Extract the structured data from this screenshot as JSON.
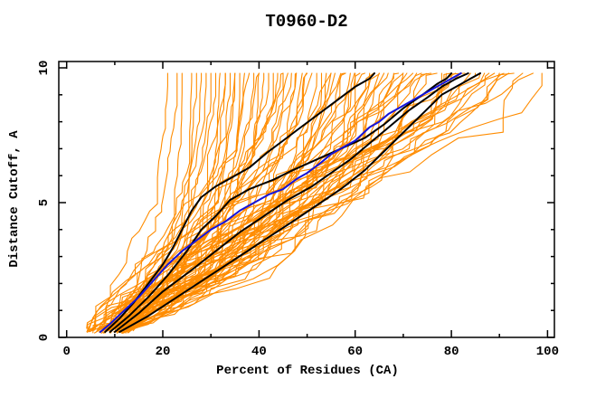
{
  "chart_data": {
    "type": "line",
    "title": "T0960-D2",
    "xlabel": "Percent of Residues (CA)",
    "ylabel": "Distance Cutoff, A",
    "xlim": [
      0,
      100
    ],
    "ylim": [
      0,
      10
    ],
    "grid": false,
    "legend": "none",
    "background_color": "#FFFFFF",
    "axis_color": "#000000",
    "x_major_ticks": [
      0,
      20,
      40,
      60,
      80,
      100
    ],
    "x_minor_ticks": [
      10,
      30,
      50,
      70,
      90
    ],
    "y_major_ticks": [
      0,
      5,
      10
    ],
    "y_minor_ticks": [
      1,
      2,
      3,
      4,
      6,
      7,
      8,
      9
    ],
    "series": [
      {
        "name": "highlight-model-black-1",
        "color": "#000000",
        "width": 2,
        "points": [
          [
            8,
            0.2
          ],
          [
            11,
            0.7
          ],
          [
            14,
            1.3
          ],
          [
            17,
            2.0
          ],
          [
            20,
            2.7
          ],
          [
            22,
            3.3
          ],
          [
            24,
            4.0
          ],
          [
            26,
            4.7
          ],
          [
            28,
            5.2
          ],
          [
            31,
            5.6
          ],
          [
            34,
            5.9
          ],
          [
            38,
            6.3
          ],
          [
            42,
            6.9
          ],
          [
            45,
            7.3
          ],
          [
            48,
            7.7
          ],
          [
            51,
            8.1
          ],
          [
            54,
            8.5
          ],
          [
            57,
            8.9
          ],
          [
            60,
            9.3
          ],
          [
            63,
            9.6
          ],
          [
            64,
            9.8
          ]
        ]
      },
      {
        "name": "highlight-model-black-2",
        "color": "#000000",
        "width": 2,
        "points": [
          [
            9,
            0.2
          ],
          [
            13,
            0.8
          ],
          [
            17,
            1.5
          ],
          [
            21,
            2.3
          ],
          [
            25,
            3.2
          ],
          [
            28,
            4.0
          ],
          [
            31,
            4.5
          ],
          [
            34,
            5.1
          ],
          [
            38,
            5.5
          ],
          [
            43,
            5.85
          ],
          [
            47,
            6.2
          ],
          [
            52,
            6.6
          ],
          [
            57,
            7.0
          ],
          [
            62,
            7.4
          ],
          [
            66,
            7.9
          ],
          [
            70,
            8.5
          ],
          [
            74,
            9.0
          ],
          [
            77,
            9.4
          ],
          [
            79,
            9.6
          ],
          [
            80,
            9.8
          ]
        ]
      },
      {
        "name": "highlight-model-black-3",
        "color": "#000000",
        "width": 2,
        "points": [
          [
            10,
            0.2
          ],
          [
            15,
            0.9
          ],
          [
            20,
            1.7
          ],
          [
            26,
            2.5
          ],
          [
            31,
            3.2
          ],
          [
            36,
            3.9
          ],
          [
            41,
            4.5
          ],
          [
            46,
            5.1
          ],
          [
            51,
            5.6
          ],
          [
            55,
            6.1
          ],
          [
            59,
            6.6
          ],
          [
            63,
            7.2
          ],
          [
            67,
            7.8
          ],
          [
            71,
            8.4
          ],
          [
            75,
            8.9
          ],
          [
            78,
            9.3
          ],
          [
            81,
            9.6
          ],
          [
            83.5,
            9.8
          ]
        ]
      },
      {
        "name": "highlight-model-black-4",
        "color": "#000000",
        "width": 2,
        "points": [
          [
            11,
            0.2
          ],
          [
            17,
            0.8
          ],
          [
            23,
            1.5
          ],
          [
            29,
            2.2
          ],
          [
            35,
            2.9
          ],
          [
            41,
            3.6
          ],
          [
            47,
            4.3
          ],
          [
            52,
            4.9
          ],
          [
            57,
            5.5
          ],
          [
            62,
            6.2
          ],
          [
            66,
            6.9
          ],
          [
            70,
            7.6
          ],
          [
            74,
            8.3
          ],
          [
            78,
            9.0
          ],
          [
            82,
            9.4
          ],
          [
            84,
            9.6
          ],
          [
            86,
            9.8
          ]
        ]
      },
      {
        "name": "highlight-model-blue",
        "color": "#1414DC",
        "width": 2,
        "points": [
          [
            7,
            0.2
          ],
          [
            9,
            0.5
          ],
          [
            12,
            1.0
          ],
          [
            15,
            1.5
          ],
          [
            18,
            2.1
          ],
          [
            21,
            2.7
          ],
          [
            24,
            3.2
          ],
          [
            27,
            3.6
          ],
          [
            30,
            4.0
          ],
          [
            33,
            4.3
          ],
          [
            36,
            4.7
          ],
          [
            39,
            5.0
          ],
          [
            42,
            5.3
          ],
          [
            45,
            5.5
          ],
          [
            48,
            5.9
          ],
          [
            50,
            6.1
          ],
          [
            53,
            6.5
          ],
          [
            55,
            6.8
          ],
          [
            58,
            7.1
          ],
          [
            60,
            7.3
          ],
          [
            63,
            7.8
          ],
          [
            65,
            8.0
          ],
          [
            67,
            8.3
          ],
          [
            69,
            8.5
          ],
          [
            72,
            8.8
          ],
          [
            75,
            9.1
          ],
          [
            78,
            9.4
          ],
          [
            80,
            9.6
          ],
          [
            82,
            9.8
          ]
        ]
      }
    ],
    "ensemble": {
      "name": "server-models-orange",
      "color": "#FF8C00",
      "width": 1.1,
      "count": 85,
      "seed": 1337,
      "start_x_range": [
        4,
        14
      ],
      "start_y": 0.2,
      "end_y": 9.8,
      "end_x_values": [
        21,
        23,
        24,
        26,
        27,
        28,
        29,
        30,
        31,
        32,
        33,
        33,
        34,
        35,
        35,
        36,
        37,
        38,
        39,
        40,
        40,
        41,
        42,
        43,
        44,
        45,
        45,
        46,
        47,
        48,
        48,
        49,
        50,
        50,
        51,
        52,
        53,
        54,
        55,
        55,
        56,
        57,
        58,
        58,
        59,
        60,
        60,
        61,
        62,
        63,
        64,
        65,
        65,
        66,
        67,
        68,
        69,
        70,
        70,
        71,
        72,
        73,
        74,
        75,
        76,
        77,
        78,
        79,
        80,
        81,
        82,
        83,
        84,
        85,
        86,
        87,
        88,
        89,
        90,
        91,
        92,
        93,
        95,
        97,
        99
      ]
    }
  }
}
